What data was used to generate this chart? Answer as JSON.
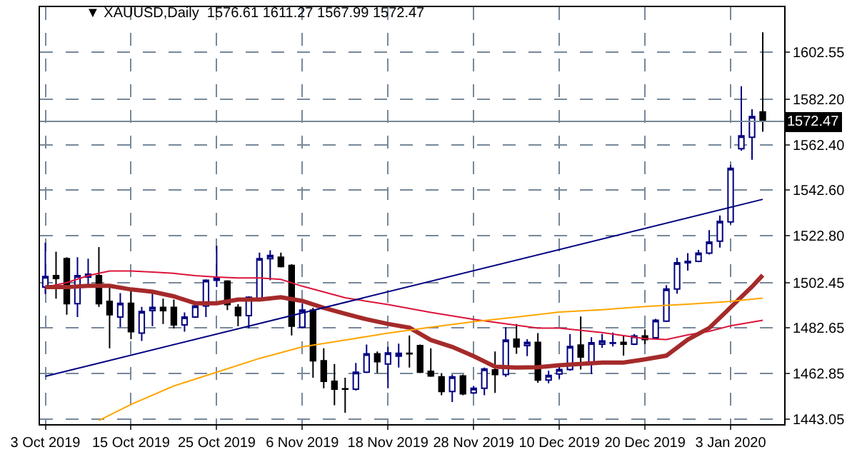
{
  "chart_data": {
    "type": "candlestick",
    "title": "▼ XAUUSD,Daily  1576.61 1611.27 1567.99 1572.47",
    "categories": [
      "3 Oct 2019",
      null,
      null,
      null,
      null,
      null,
      null,
      null,
      "15 Oct 2019",
      null,
      null,
      null,
      null,
      null,
      null,
      null,
      "25 Oct 2019",
      null,
      null,
      null,
      null,
      null,
      null,
      null,
      "6 Nov 2019",
      null,
      null,
      null,
      null,
      null,
      null,
      null,
      "18 Nov 2019",
      null,
      null,
      null,
      null,
      null,
      null,
      null,
      "28 Nov 2019",
      null,
      null,
      null,
      null,
      null,
      null,
      null,
      "10 Dec 2019",
      null,
      null,
      null,
      null,
      null,
      null,
      null,
      "20 Dec 2019",
      null,
      null,
      null,
      null,
      null,
      null,
      null,
      "3 Jan 2020",
      null,
      null,
      null
    ],
    "ohlc": [
      [
        1500.4,
        1519.8,
        1497.4,
        1505.0
      ],
      [
        1505.4,
        1515.8,
        1495.4,
        1504.2
      ],
      [
        1512.8,
        1513.4,
        1488.4,
        1493.2
      ],
      [
        1493.2,
        1513.4,
        1487.4,
        1505.4
      ],
      [
        1504.8,
        1512.8,
        1500.4,
        1506.0
      ],
      [
        1505.4,
        1517.8,
        1491.8,
        1493.2
      ],
      [
        1494.2,
        1500.8,
        1473.8,
        1488.4
      ],
      [
        1487.4,
        1497.8,
        1483.0,
        1493.4
      ],
      [
        1493.4,
        1499.8,
        1477.8,
        1481.0
      ],
      [
        1480.4,
        1491.8,
        1477.0,
        1489.8
      ],
      [
        1490.2,
        1497.8,
        1483.4,
        1491.6
      ],
      [
        1491.6,
        1495.4,
        1484.4,
        1490.2
      ],
      [
        1491.6,
        1495.0,
        1482.4,
        1484.0
      ],
      [
        1484.0,
        1489.4,
        1481.0,
        1487.4
      ],
      [
        1487.4,
        1493.8,
        1487.0,
        1492.2
      ],
      [
        1492.2,
        1503.8,
        1487.4,
        1503.4
      ],
      [
        1503.4,
        1518.4,
        1500.4,
        1504.4
      ],
      [
        1503.0,
        1503.4,
        1490.4,
        1492.8
      ],
      [
        1491.6,
        1493.0,
        1483.4,
        1488.0
      ],
      [
        1488.0,
        1496.4,
        1482.4,
        1496.0
      ],
      [
        1495.4,
        1515.4,
        1495.0,
        1512.8
      ],
      [
        1512.8,
        1516.4,
        1503.4,
        1514.2
      ],
      [
        1513.4,
        1515.4,
        1509.0,
        1509.4
      ],
      [
        1509.8,
        1510.4,
        1479.4,
        1483.4
      ],
      [
        1483.0,
        1493.4,
        1482.4,
        1490.4
      ],
      [
        1490.4,
        1491.4,
        1461.0,
        1468.4
      ],
      [
        1468.4,
        1473.8,
        1456.4,
        1459.4
      ],
      [
        1459.4,
        1467.0,
        1449.0,
        1456.0
      ],
      [
        1456.2,
        1461.0,
        1445.8,
        1456.0
      ],
      [
        1456.0,
        1467.4,
        1455.4,
        1463.4
      ],
      [
        1463.4,
        1475.4,
        1463.0,
        1471.4
      ],
      [
        1471.4,
        1472.4,
        1463.0,
        1468.0
      ],
      [
        1467.0,
        1474.4,
        1456.4,
        1471.8
      ],
      [
        1470.4,
        1475.8,
        1465.4,
        1471.6
      ],
      [
        1471.6,
        1479.4,
        1465.4,
        1471.4
      ],
      [
        1475.0,
        1475.4,
        1463.0,
        1463.4
      ],
      [
        1463.8,
        1473.8,
        1461.4,
        1461.8
      ],
      [
        1461.4,
        1463.0,
        1453.4,
        1455.0
      ],
      [
        1455.0,
        1462.4,
        1450.4,
        1461.4
      ],
      [
        1461.8,
        1462.4,
        1453.4,
        1454.0
      ],
      [
        1454.4,
        1457.4,
        1454.0,
        1456.4
      ],
      [
        1456.4,
        1465.4,
        1453.4,
        1464.8
      ],
      [
        1464.4,
        1472.4,
        1454.4,
        1462.4
      ],
      [
        1462.4,
        1483.0,
        1461.4,
        1477.4
      ],
      [
        1477.8,
        1484.4,
        1471.4,
        1474.4
      ],
      [
        1475.0,
        1477.8,
        1470.4,
        1476.4
      ],
      [
        1476.4,
        1480.4,
        1458.8,
        1460.0
      ],
      [
        1460.0,
        1464.0,
        1458.6,
        1462.0
      ],
      [
        1462.6,
        1466.6,
        1460.6,
        1464.6
      ],
      [
        1464.6,
        1480.0,
        1464.0,
        1474.6
      ],
      [
        1475.2,
        1487.6,
        1464.6,
        1470.0
      ],
      [
        1467.2,
        1478.6,
        1462.6,
        1476.2
      ],
      [
        1475.6,
        1480.0,
        1474.0,
        1477.0
      ],
      [
        1476.0,
        1480.6,
        1474.6,
        1476.2
      ],
      [
        1476.4,
        1479.6,
        1470.6,
        1475.6
      ],
      [
        1475.6,
        1480.0,
        1475.2,
        1479.2
      ],
      [
        1479.2,
        1482.0,
        1475.6,
        1477.6
      ],
      [
        1478.4,
        1486.6,
        1478.0,
        1486.0
      ],
      [
        1485.6,
        1501.2,
        1485.2,
        1499.6
      ],
      [
        1499.6,
        1513.2,
        1497.6,
        1511.0
      ],
      [
        1511.0,
        1515.2,
        1507.6,
        1511.6
      ],
      [
        1511.6,
        1516.6,
        1511.2,
        1515.2
      ],
      [
        1515.2,
        1525.2,
        1514.6,
        1520.0
      ],
      [
        1520.4,
        1531.6,
        1517.6,
        1529.0
      ],
      [
        1528.8,
        1553.6,
        1527.8,
        1552.1
      ],
      [
        1560.6,
        1587.8,
        1559.8,
        1566.2
      ],
      [
        1565.6,
        1577.8,
        1555.8,
        1574.6
      ],
      [
        1576.61,
        1611.27,
        1567.99,
        1572.47
      ]
    ],
    "series": [
      {
        "type": "line",
        "color": "#dc143c",
        "values": [
          1500.4,
          null,
          1502.4,
          null,
          1505.4,
          null,
          1507.4,
          null,
          1507.4,
          null,
          1507.0,
          null,
          1506.4,
          null,
          1505.4,
          null,
          1504.8,
          null,
          1504.4,
          null,
          1504.4,
          null,
          1503.8,
          null,
          1500.8,
          null,
          null,
          null,
          1495.8,
          null,
          null,
          null,
          1492.8,
          null,
          null,
          null,
          1489.4,
          null,
          null,
          null,
          1486.4,
          null,
          null,
          null,
          1483.8,
          null,
          1482.6,
          null,
          1482.6,
          null,
          null,
          null,
          1480.6,
          null,
          null,
          null,
          1478.0,
          null,
          1477.6,
          null,
          1479.6,
          null,
          1481.2,
          null,
          1483.6,
          null,
          null,
          1486.0
        ]
      },
      {
        "type": "line",
        "color": "#a52a2a",
        "values": [
          1500.4,
          null,
          1500.4,
          null,
          1501.0,
          null,
          1501.0,
          null,
          1499.4,
          null,
          1498.4,
          null,
          1496.4,
          null,
          1493.4,
          null,
          1493.4,
          null,
          1495.0,
          null,
          1495.0,
          null,
          1496.0,
          null,
          1494.4,
          null,
          1491.4,
          null,
          1488.8,
          null,
          1486.4,
          null,
          1484.4,
          null,
          1482.8,
          null,
          1477.4,
          null,
          1474.4,
          null,
          1470.4,
          null,
          1465.8,
          null,
          1465.4,
          null,
          1465.6,
          null,
          1466.4,
          null,
          null,
          null,
          1467.6,
          null,
          1467.6,
          null,
          1469.0,
          null,
          1470.6,
          null,
          1477.6,
          null,
          1482.6,
          null,
          1491.6,
          null,
          1500.6,
          1505.6
        ]
      },
      {
        "type": "line",
        "color": "#ffa500",
        "values": [
          null,
          null,
          null,
          null,
          null,
          1442.4,
          null,
          null,
          1449.4,
          null,
          null,
          null,
          1457.4,
          null,
          null,
          null,
          1463.4,
          null,
          null,
          null,
          1469.4,
          null,
          null,
          null,
          1474.4,
          null,
          null,
          null,
          1477.4,
          null,
          null,
          null,
          1480.4,
          null,
          null,
          null,
          1483.0,
          null,
          null,
          null,
          1485.4,
          null,
          null,
          null,
          1487.4,
          null,
          null,
          null,
          1489.6,
          null,
          null,
          null,
          1490.6,
          null,
          null,
          null,
          1492.0,
          null,
          null,
          null,
          1493.0,
          null,
          null,
          null,
          1494.2,
          null,
          null,
          1495.6
        ]
      },
      {
        "type": "line",
        "color": "#000080",
        "values": [
          1461.6,
          null,
          null,
          null,
          null,
          null,
          null,
          null,
          null,
          null,
          null,
          null,
          null,
          null,
          null,
          null,
          null,
          null,
          null,
          null,
          null,
          null,
          null,
          null,
          null,
          null,
          null,
          null,
          null,
          null,
          null,
          null,
          null,
          null,
          null,
          null,
          null,
          null,
          null,
          null,
          null,
          null,
          null,
          null,
          null,
          null,
          null,
          null,
          null,
          null,
          null,
          null,
          null,
          null,
          null,
          null,
          null,
          null,
          null,
          null,
          null,
          null,
          null,
          null,
          null,
          null,
          null,
          1538.6
        ]
      }
    ],
    "ylim": [
      1440.8,
      1622.2
    ],
    "yticks": [
      1443.05,
      1462.85,
      1482.65,
      1502.45,
      {
        "value": 1522.8,
        "label": "1522.80"
      },
      {
        "value": 1542.6,
        "label": "1542.60"
      },
      {
        "value": 1562.4,
        "label": "1562.40"
      },
      {
        "value": 1582.2,
        "label": "1582.20"
      },
      1602.55
    ],
    "ref_lines": [
      {
        "axis": "y",
        "value": 1572.47,
        "label": "1572.47",
        "color": "#778899"
      }
    ],
    "grid": true
  }
}
